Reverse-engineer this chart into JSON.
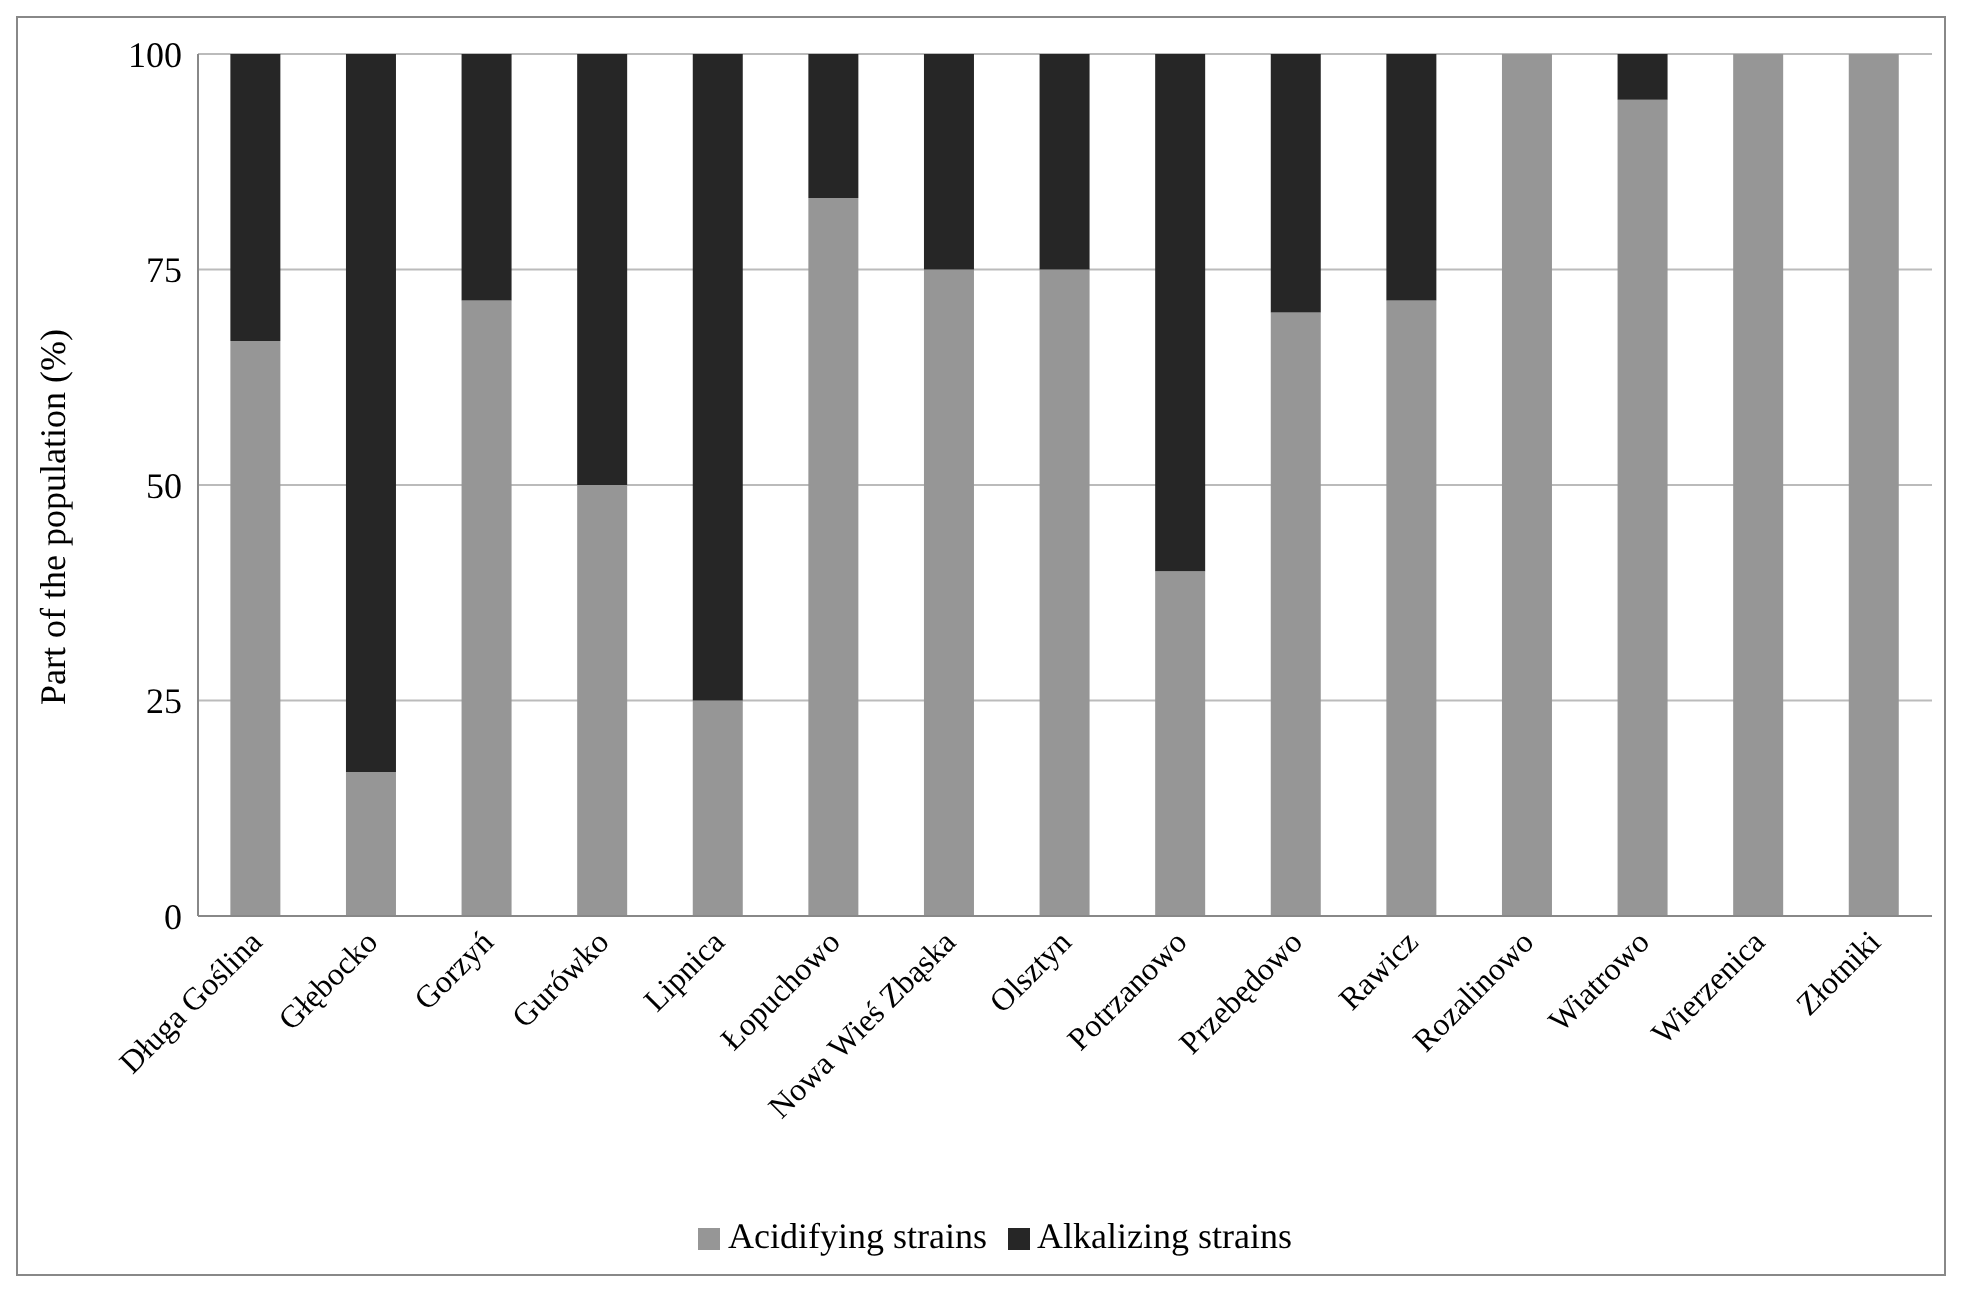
{
  "chart_data": {
    "type": "bar",
    "stacked": true,
    "ylabel": "Part of the population (%)",
    "categories": [
      "Długa Goślina",
      "Głębocko",
      "Gorzyń",
      "Gurówko",
      "Lipnica",
      "Łopuchowo",
      "Nowa Wieś Zbąska",
      "Olsztyn",
      "Potrzanowo",
      "Przebędowo",
      "Rawicz",
      "Rozalinowo",
      "Wiatrowo",
      "Wierzenica",
      "Złotniki"
    ],
    "series": [
      {
        "name": "Acidifying strains",
        "color": "#969696",
        "values": [
          66.7,
          16.7,
          71.4,
          50,
          25,
          83.3,
          75,
          75,
          40,
          70,
          71.4,
          100,
          94.7,
          100,
          100
        ]
      },
      {
        "name": "Alkalizing strains",
        "color": "#262626",
        "values": [
          33.3,
          83.3,
          28.6,
          50,
          75,
          16.7,
          25,
          25,
          60,
          30,
          28.6,
          0,
          5.3,
          0,
          0
        ]
      }
    ],
    "ylim": [
      0,
      100
    ],
    "yticks": [
      0,
      25,
      50,
      75,
      100
    ],
    "grid": "y",
    "legend": "bottom"
  }
}
